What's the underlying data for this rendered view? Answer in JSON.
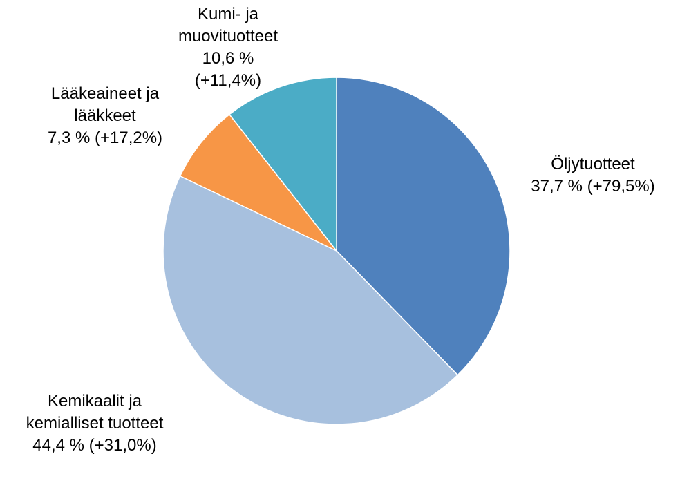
{
  "chart_data": {
    "type": "pie",
    "categories": [
      "Öljytuotteet",
      "Kemikaalit ja kemialliset tuotteet",
      "Lääkeaineet ja lääkkeet",
      "Kumi- ja muovituotteet"
    ],
    "values": [
      37.7,
      44.4,
      7.3,
      10.6
    ],
    "value_labels": [
      "37,7 % (+79,5%)",
      "44,4 % (+31,0%)",
      "7,3 % (+17,2%)",
      "10,6 % (+11,4%)"
    ],
    "colors": [
      "#4f81bd",
      "#a7c0de",
      "#f79646",
      "#4bacc6"
    ]
  }
}
